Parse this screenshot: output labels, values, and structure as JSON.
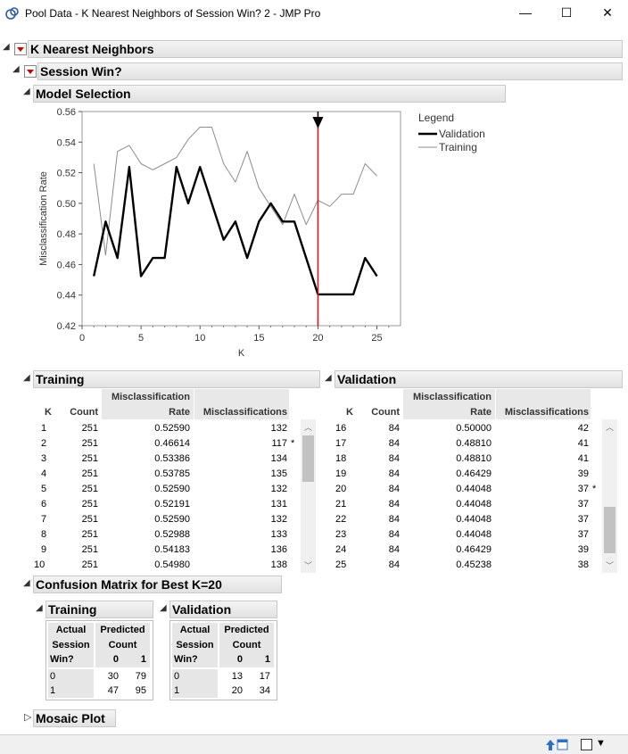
{
  "window": {
    "title": "Pool Data - K Nearest Neighbors of Session Win? 2 - JMP Pro",
    "minimize": "—",
    "maximize": "☐",
    "close": "✕"
  },
  "outline": {
    "root": "K Nearest Neighbors",
    "response": "Session Win?",
    "model_selection": "Model Selection",
    "training": "Training",
    "validation": "Validation",
    "confusion": "Confusion Matrix for Best K=20",
    "cm_training": "Training",
    "cm_validation": "Validation",
    "mosaic": "Mosaic Plot"
  },
  "chart_data": {
    "type": "line",
    "xlabel": "K",
    "ylabel": "Misclassification Rate",
    "xlim": [
      0,
      27
    ],
    "ylim": [
      0.42,
      0.56
    ],
    "xticks": [
      0,
      5,
      10,
      15,
      20,
      25
    ],
    "yticks": [
      0.42,
      0.44,
      0.46,
      0.48,
      0.5,
      0.52,
      0.54,
      0.56
    ],
    "ytick_labels": [
      "0.42",
      "0.44",
      "0.46",
      "0.48",
      "0.50",
      "0.52",
      "0.54",
      "0.56"
    ],
    "legend_title": "Legend",
    "legend_placement": "right",
    "best_k": 20,
    "series": [
      {
        "name": "Validation",
        "color": "#000000",
        "x": [
          1,
          2,
          3,
          4,
          5,
          6,
          7,
          8,
          9,
          10,
          11,
          12,
          13,
          14,
          15,
          16,
          17,
          18,
          19,
          20,
          21,
          22,
          23,
          24,
          25
        ],
        "values": [
          0.4524,
          0.4881,
          0.4643,
          0.5238,
          0.4524,
          0.4643,
          0.4643,
          0.5238,
          0.5,
          0.5238,
          0.5,
          0.4762,
          0.4881,
          0.4643,
          0.4881,
          0.5,
          0.4881,
          0.4881,
          0.4643,
          0.4405,
          0.4405,
          0.4405,
          0.4405,
          0.4643,
          0.4524
        ]
      },
      {
        "name": "Training",
        "color": "#8c8c8c",
        "x": [
          1,
          2,
          3,
          4,
          5,
          6,
          7,
          8,
          9,
          10,
          11,
          12,
          13,
          14,
          15,
          16,
          17,
          18,
          19,
          20,
          21,
          22,
          23,
          24,
          25
        ],
        "values": [
          0.5259,
          0.4661,
          0.5339,
          0.5379,
          0.5259,
          0.5219,
          0.5259,
          0.5299,
          0.5418,
          0.5498,
          0.5498,
          0.5259,
          0.5139,
          0.5339,
          0.51,
          0.498,
          0.4861,
          0.506,
          0.4861,
          0.502,
          0.498,
          0.506,
          0.506,
          0.5259,
          0.5179
        ]
      }
    ]
  },
  "training_table": {
    "headers": [
      "K",
      "Count",
      "Misclassification",
      "Rate",
      "Misclassifications"
    ],
    "rows": [
      [
        "1",
        "251",
        "0.52590",
        "132",
        ""
      ],
      [
        "2",
        "251",
        "0.46614",
        "117",
        "*"
      ],
      [
        "3",
        "251",
        "0.53386",
        "134",
        ""
      ],
      [
        "4",
        "251",
        "0.53785",
        "135",
        ""
      ],
      [
        "5",
        "251",
        "0.52590",
        "132",
        ""
      ],
      [
        "6",
        "251",
        "0.52191",
        "131",
        ""
      ],
      [
        "7",
        "251",
        "0.52590",
        "132",
        ""
      ],
      [
        "8",
        "251",
        "0.52988",
        "133",
        ""
      ],
      [
        "9",
        "251",
        "0.54183",
        "136",
        ""
      ],
      [
        "10",
        "251",
        "0.54980",
        "138",
        ""
      ]
    ]
  },
  "validation_table": {
    "headers": [
      "K",
      "Count",
      "Misclassification",
      "Rate",
      "Misclassifications"
    ],
    "rows": [
      [
        "16",
        "84",
        "0.50000",
        "42",
        ""
      ],
      [
        "17",
        "84",
        "0.48810",
        "41",
        ""
      ],
      [
        "18",
        "84",
        "0.48810",
        "41",
        ""
      ],
      [
        "19",
        "84",
        "0.46429",
        "39",
        ""
      ],
      [
        "20",
        "84",
        "0.44048",
        "37",
        "*"
      ],
      [
        "21",
        "84",
        "0.44048",
        "37",
        ""
      ],
      [
        "22",
        "84",
        "0.44048",
        "37",
        ""
      ],
      [
        "23",
        "84",
        "0.44048",
        "37",
        ""
      ],
      [
        "24",
        "84",
        "0.46429",
        "39",
        ""
      ],
      [
        "25",
        "84",
        "0.45238",
        "38",
        ""
      ]
    ]
  },
  "confusion": {
    "training": {
      "actual": "Actual",
      "session": "Session",
      "win": "Win?",
      "predicted": "Predicted",
      "count": "Count",
      "col0": "0",
      "col1": "1",
      "rows": [
        [
          "0",
          "30",
          "79"
        ],
        [
          "1",
          "47",
          "95"
        ]
      ]
    },
    "validation": {
      "actual": "Actual",
      "session": "Session",
      "win": "Win?",
      "predicted": "Predicted",
      "count": "Count",
      "col0": "0",
      "col1": "1",
      "rows": [
        [
          "0",
          "13",
          "17"
        ],
        [
          "1",
          "20",
          "34"
        ]
      ]
    }
  },
  "status": {
    "up_icon": "up-icon",
    "window_icon": "window-icon"
  }
}
